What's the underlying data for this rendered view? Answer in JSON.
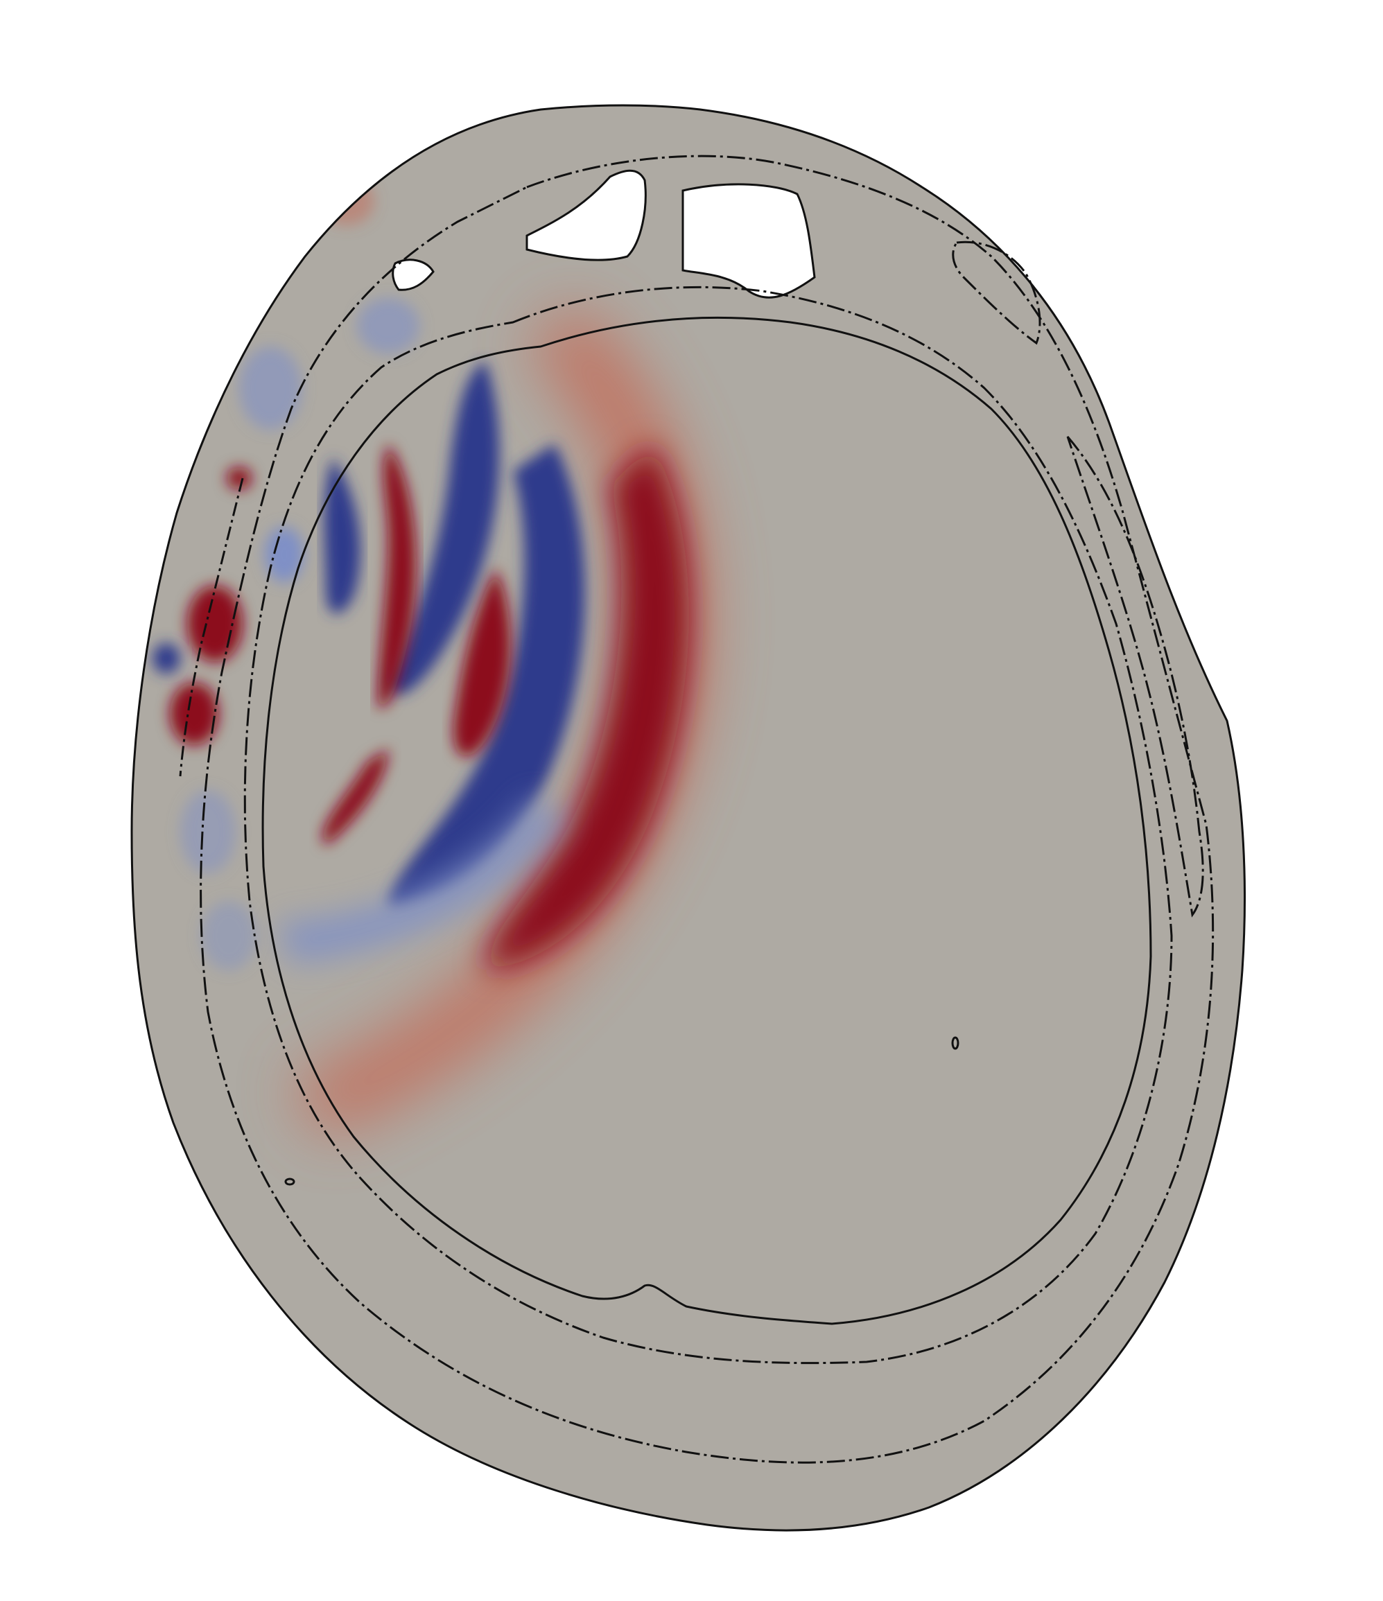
{
  "figure": {
    "kind": "acoustic pressure field in axial head cross-section",
    "colors": {
      "background": "#ffffff",
      "tissue": "#aeaaa3",
      "positive_pressure": "#8c0a1e",
      "negative_pressure": "#2e3b8c",
      "light_positive": "#c46a56",
      "light_negative": "#7f90c6",
      "outline": "#111111",
      "sinus_cavity": "#ffffff"
    },
    "regions": [
      "scalp",
      "skull",
      "brain",
      "frontal-sinus-left",
      "frontal-sinus-right",
      "small-sinus-cavity"
    ],
    "wavefronts": [
      {
        "polarity": "positive",
        "strength": "strong"
      },
      {
        "polarity": "negative",
        "strength": "strong"
      },
      {
        "polarity": "positive",
        "strength": "strong"
      },
      {
        "polarity": "negative",
        "strength": "strong"
      },
      {
        "polarity": "positive",
        "strength": "moderate"
      }
    ]
  }
}
